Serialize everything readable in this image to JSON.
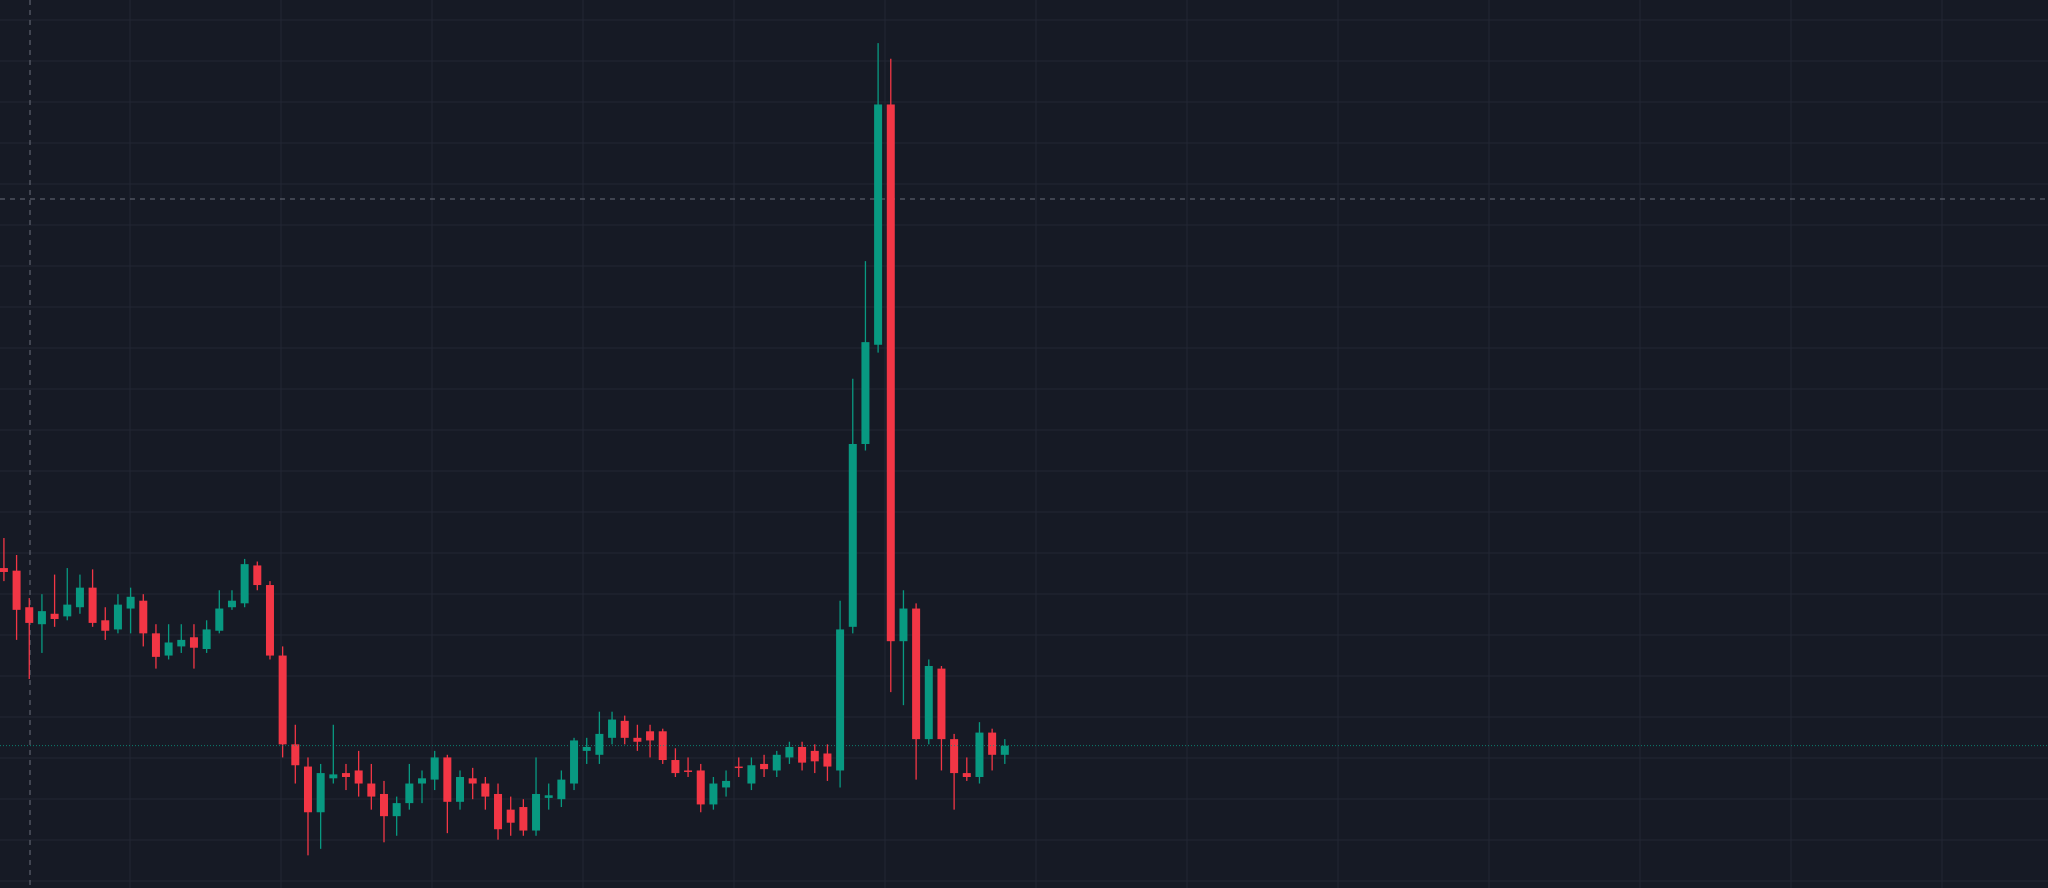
{
  "chart_data": {
    "type": "candlestick",
    "up_color": "#089981",
    "down_color": "#f23645",
    "ylim": [
      0,
      680
    ],
    "grid": true,
    "categories": [
      null,
      null,
      null,
      null,
      null,
      null,
      null,
      null,
      null,
      null,
      null,
      null,
      null,
      null,
      null,
      null,
      null,
      null,
      null,
      null,
      null,
      null,
      null,
      null,
      null,
      null,
      null,
      null,
      null,
      null,
      null,
      null,
      null,
      null,
      null,
      null,
      null,
      null,
      null,
      null,
      null,
      null,
      null,
      null,
      null,
      null,
      null,
      null,
      null,
      null,
      null,
      null,
      null,
      null,
      null,
      null,
      null,
      null,
      null,
      null,
      null,
      null,
      null,
      null,
      null,
      null,
      null,
      null,
      null,
      null,
      null,
      null,
      null,
      null,
      null,
      null,
      null,
      null,
      null,
      null
    ],
    "open": [
      245,
      243,
      215,
      202,
      210,
      208,
      215,
      230,
      205,
      198,
      214,
      220,
      195,
      178,
      185,
      192,
      183,
      197,
      215,
      218,
      247,
      232,
      178,
      110,
      93,
      58,
      84,
      88,
      90,
      80,
      72,
      55,
      65,
      80,
      83,
      100,
      66,
      84,
      80,
      72,
      60,
      62,
      44,
      69,
      68,
      80,
      105,
      102,
      115,
      128,
      115,
      120,
      120,
      98,
      90,
      90,
      64,
      77,
      93,
      80,
      95,
      90,
      100,
      108,
      105,
      103,
      90,
      200,
      340,
      416,
      600,
      189,
      214,
      114,
      168,
      114,
      88,
      85,
      119,
      102
    ],
    "high": [
      268,
      255,
      222,
      225,
      240,
      245,
      240,
      244,
      215,
      225,
      230,
      225,
      202,
      202,
      202,
      202,
      205,
      228,
      228,
      252,
      250,
      235,
      185,
      125,
      100,
      95,
      125,
      95,
      105,
      95,
      82,
      70,
      95,
      90,
      105,
      102,
      90,
      92,
      85,
      80,
      70,
      68,
      100,
      80,
      90,
      115,
      115,
      135,
      135,
      132,
      125,
      125,
      122,
      107,
      100,
      95,
      85,
      90,
      100,
      100,
      102,
      105,
      112,
      112,
      110,
      110,
      220,
      390,
      480,
      647,
      635,
      228,
      218,
      175,
      170,
      118,
      100,
      127,
      122,
      114
    ],
    "low": [
      235,
      190,
      160,
      180,
      200,
      205,
      210,
      200,
      190,
      195,
      195,
      185,
      168,
      175,
      180,
      168,
      180,
      195,
      213,
      215,
      228,
      175,
      100,
      80,
      25,
      30,
      80,
      75,
      70,
      60,
      35,
      40,
      60,
      65,
      75,
      42,
      60,
      68,
      60,
      37,
      40,
      40,
      40,
      60,
      62,
      75,
      95,
      95,
      110,
      110,
      105,
      100,
      95,
      85,
      85,
      58,
      60,
      70,
      85,
      75,
      85,
      85,
      95,
      90,
      88,
      82,
      77,
      195,
      335,
      410,
      150,
      140,
      83,
      110,
      90,
      60,
      82,
      80,
      90,
      95
    ],
    "close": [
      242,
      213,
      203,
      212,
      206,
      217,
      230,
      203,
      197,
      217,
      223,
      195,
      177,
      188,
      190,
      184,
      198,
      214,
      220,
      248,
      232,
      178,
      110,
      94,
      58,
      88,
      87,
      85,
      80,
      70,
      55,
      65,
      80,
      84,
      100,
      66,
      85,
      80,
      70,
      45,
      50,
      44,
      72,
      71,
      83,
      113,
      108,
      118,
      129,
      115,
      112,
      113,
      98,
      88,
      89,
      64,
      80,
      82,
      92,
      94,
      91,
      102,
      108,
      96,
      97,
      93,
      198,
      340,
      418,
      600,
      189,
      214,
      114,
      170,
      114,
      88,
      85,
      119,
      102,
      109
    ]
  }
}
